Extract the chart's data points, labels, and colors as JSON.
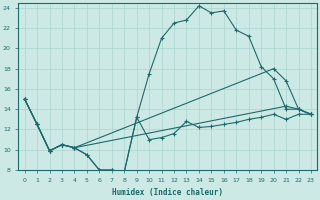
{
  "xlabel": "Humidex (Indice chaleur)",
  "bg_color": "#cce9e5",
  "grid_color": "#aad4cf",
  "line_color": "#1a6b6b",
  "xlim_min": -0.5,
  "xlim_max": 23.5,
  "ylim_min": 8,
  "ylim_max": 24.5,
  "xticks": [
    0,
    1,
    2,
    3,
    4,
    5,
    6,
    7,
    8,
    9,
    10,
    11,
    12,
    13,
    14,
    15,
    16,
    17,
    18,
    19,
    20,
    21,
    22,
    23
  ],
  "yticks": [
    8,
    10,
    12,
    14,
    16,
    18,
    20,
    22,
    24
  ],
  "s1_x": [
    0,
    1,
    2,
    3,
    4,
    5,
    6,
    7,
    8,
    9,
    10,
    11,
    12,
    13,
    14,
    15,
    16,
    17,
    18,
    19,
    20,
    21,
    22,
    23
  ],
  "s1_y": [
    15.0,
    12.5,
    9.9,
    10.5,
    10.2,
    9.5,
    8.0,
    8.0,
    7.8,
    13.2,
    17.5,
    21.0,
    22.5,
    22.8,
    24.2,
    23.5,
    23.7,
    21.8,
    21.2,
    18.2,
    17.0,
    14.0,
    14.0,
    13.5
  ],
  "s2_x": [
    0,
    1,
    2,
    3,
    4,
    5,
    6,
    7,
    8,
    9,
    10,
    11,
    12,
    13,
    14,
    15,
    16,
    17,
    18,
    19,
    20,
    21,
    22,
    23
  ],
  "s2_y": [
    15.0,
    12.5,
    9.9,
    10.5,
    10.2,
    9.5,
    8.0,
    8.0,
    7.8,
    13.2,
    11.0,
    11.2,
    11.6,
    12.8,
    12.2,
    12.3,
    12.5,
    12.7,
    13.0,
    13.2,
    13.5,
    13.0,
    13.5,
    13.5
  ],
  "s3_x": [
    0,
    1,
    2,
    3,
    4,
    21,
    22,
    23
  ],
  "s3_y": [
    15.0,
    12.5,
    9.9,
    10.5,
    10.2,
    14.3,
    14.0,
    13.5
  ],
  "s4_x": [
    0,
    1,
    2,
    3,
    4,
    20,
    21,
    22,
    23
  ],
  "s4_y": [
    15.0,
    12.5,
    9.9,
    10.5,
    10.2,
    18.0,
    16.8,
    14.0,
    13.5
  ]
}
